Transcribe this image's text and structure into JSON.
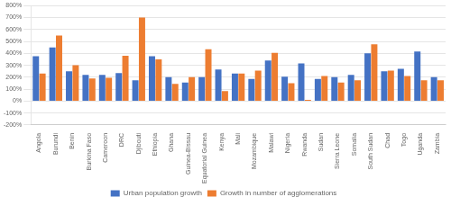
{
  "chart_data": {
    "type": "bar",
    "categories": [
      "Angola",
      "Burundi",
      "Benin",
      "Burkina Faso",
      "Cameroon",
      "DRC",
      "Djibouti",
      "Ethiopia",
      "Ghana",
      "Guinea-Bissau",
      "Equatorial Guinea",
      "Kenya",
      "Mali",
      "Mozambique",
      "Malawi",
      "Nigeria",
      "Rwanda",
      "Sudan",
      "Sierra Leone",
      "Somalia",
      "South Sudan",
      "Chad",
      "Togo",
      "Uganda",
      "Zambia"
    ],
    "series": [
      {
        "name": "Urban population growth",
        "color": "#4472C4",
        "values": [
          375,
          450,
          250,
          220,
          220,
          235,
          175,
          375,
          200,
          155,
          200,
          265,
          230,
          185,
          340,
          205,
          315,
          185,
          200,
          220,
          400,
          250,
          270,
          415,
          200
        ]
      },
      {
        "name": "Growth in number of agglomerations",
        "color": "#ED7D31",
        "values": [
          230,
          550,
          300,
          190,
          195,
          380,
          700,
          350,
          145,
          200,
          435,
          85,
          230,
          255,
          405,
          150,
          10,
          210,
          155,
          175,
          475,
          255,
          210,
          175,
          175
        ]
      }
    ],
    "ylim": [
      -200,
      800
    ],
    "yticks": [
      {
        "value": -200,
        "label": "-200%"
      },
      {
        "value": -100,
        "label": "-100%"
      },
      {
        "value": 0,
        "label": "0%"
      },
      {
        "value": 100,
        "label": "100%"
      },
      {
        "value": 200,
        "label": "200%"
      },
      {
        "value": 300,
        "label": "300%"
      },
      {
        "value": 400,
        "label": "400%"
      },
      {
        "value": 500,
        "label": "500%"
      },
      {
        "value": 600,
        "label": "600%"
      },
      {
        "value": 700,
        "label": "700%"
      },
      {
        "value": 800,
        "label": "800%"
      }
    ],
    "grid": true,
    "legend": "bottom"
  }
}
